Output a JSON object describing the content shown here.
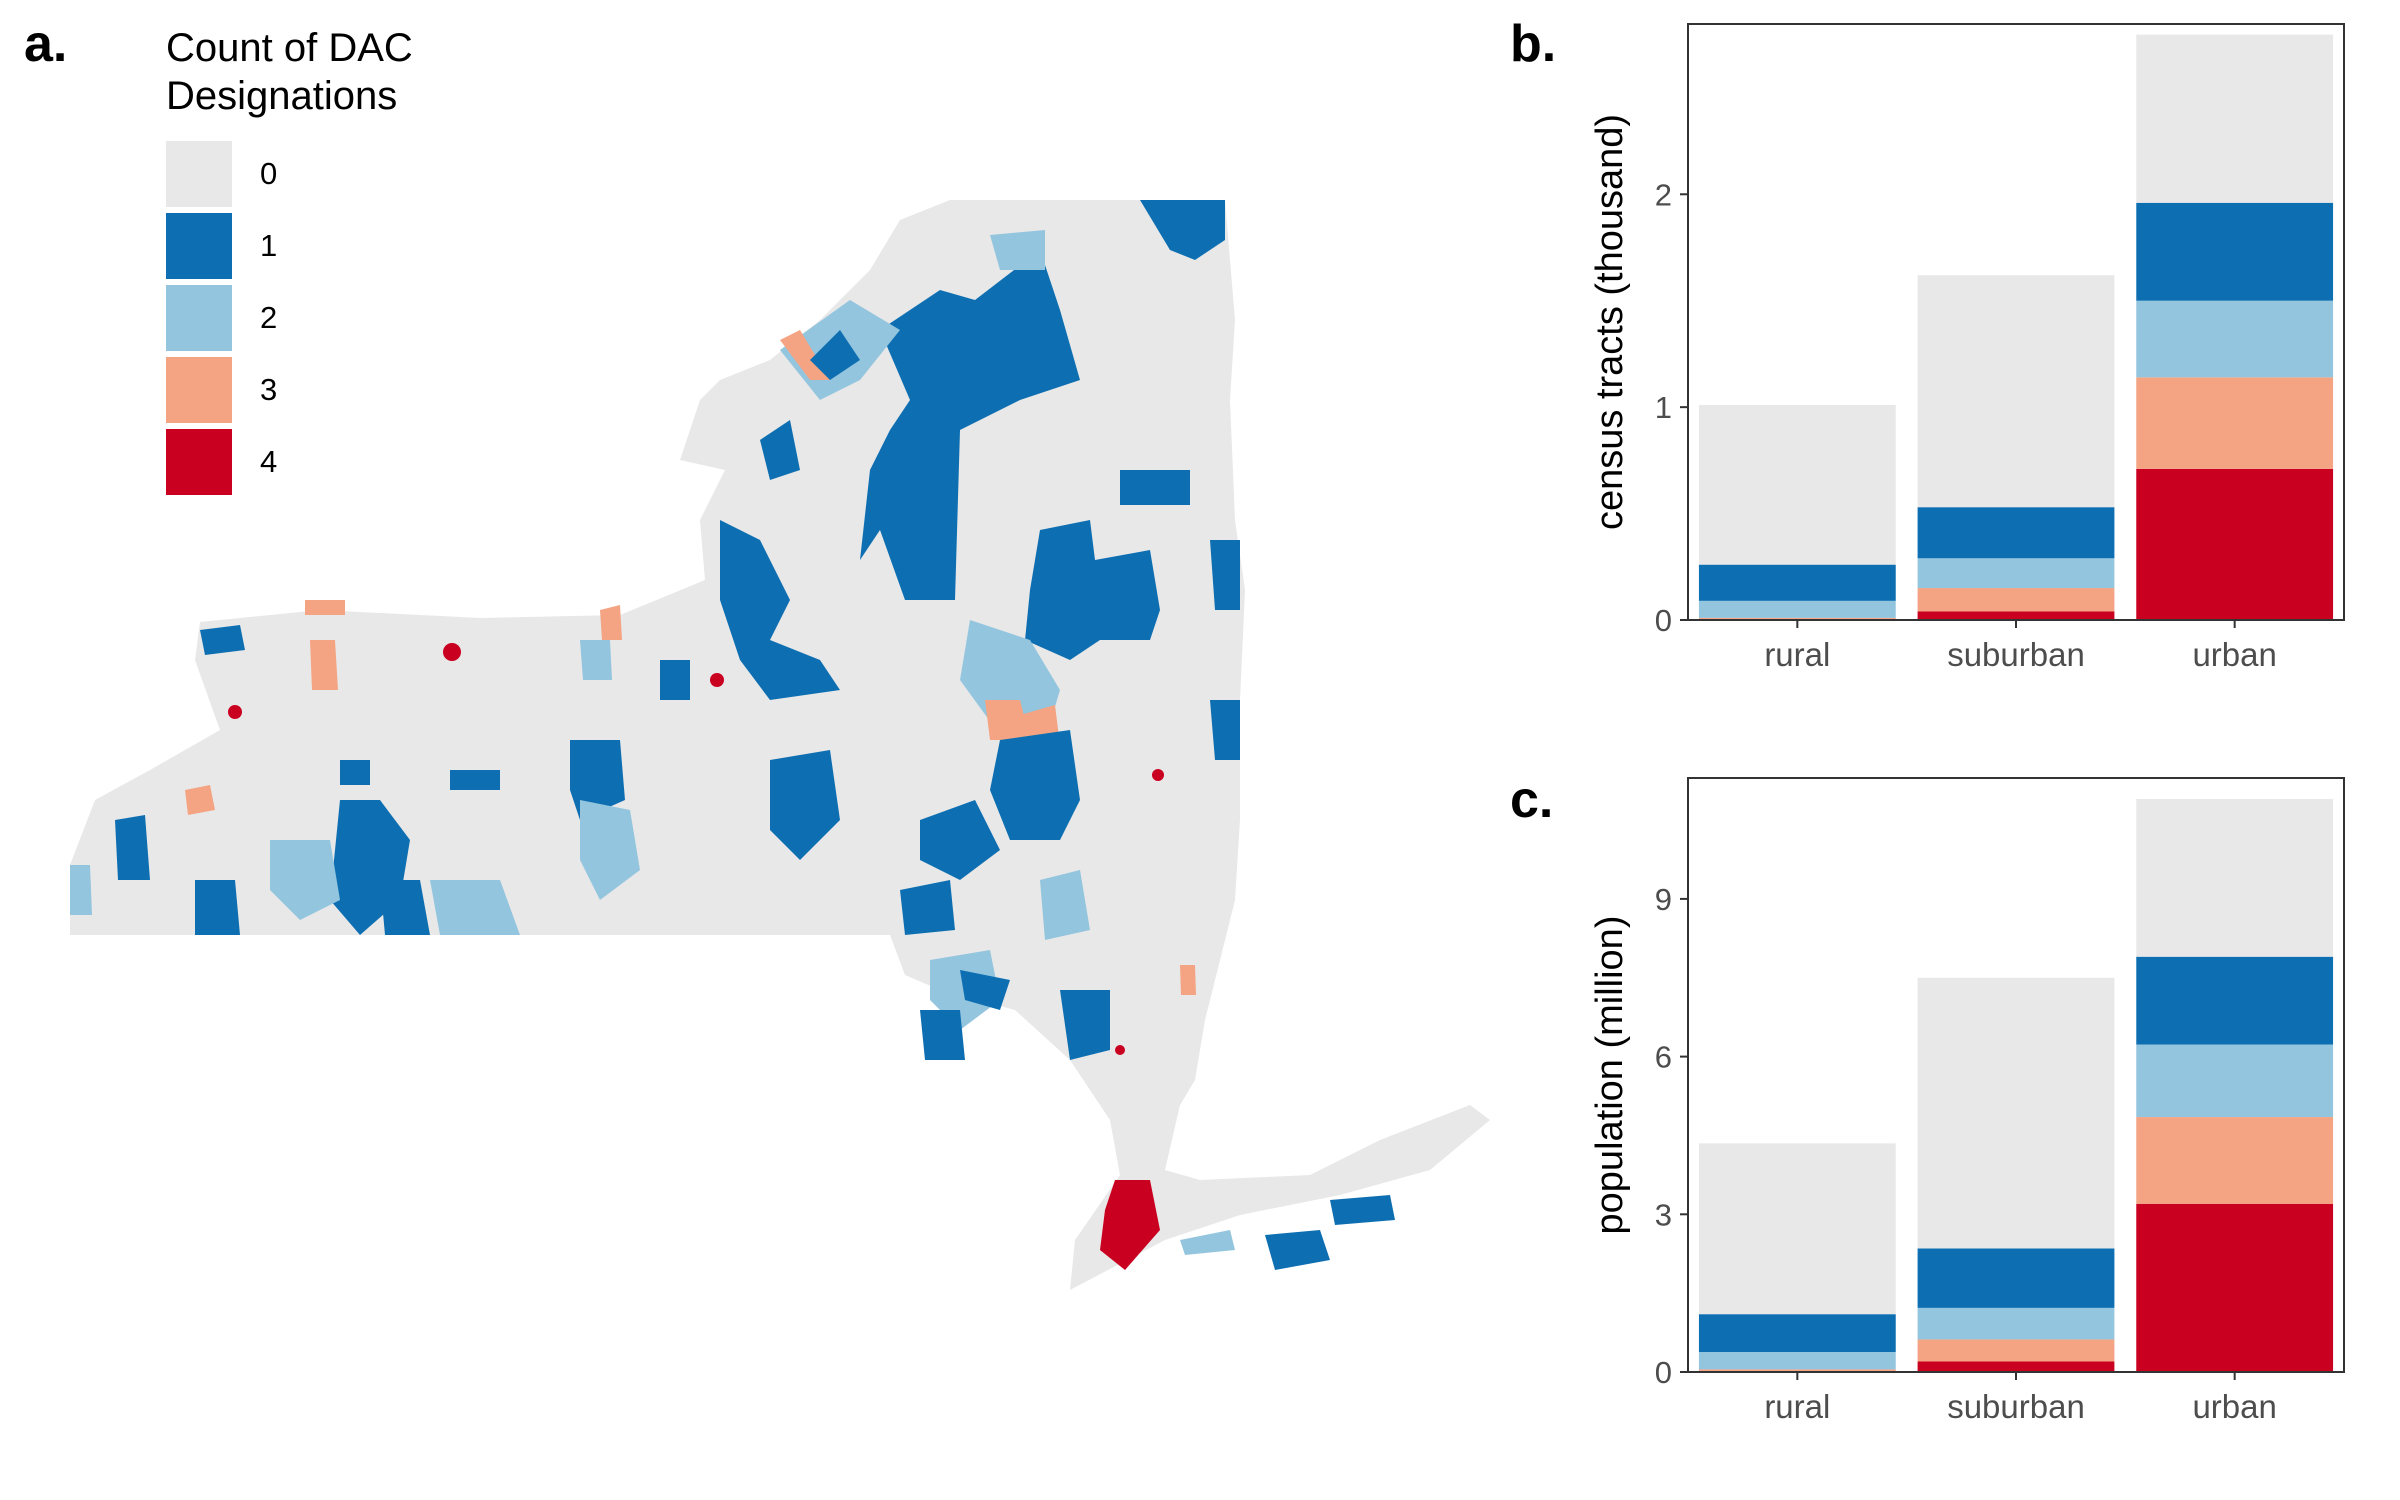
{
  "panels": {
    "a_label": "a.",
    "b_label": "b.",
    "c_label": "c."
  },
  "legend": {
    "title_line1": "Count of DAC",
    "title_line2": "Designations",
    "items": [
      {
        "label": "0",
        "color": "#e8e8e8"
      },
      {
        "label": "1",
        "color": "#0d6fb2"
      },
      {
        "label": "2",
        "color": "#93c5de"
      },
      {
        "label": "3",
        "color": "#f4a482"
      },
      {
        "label": "4",
        "color": "#ca0020"
      }
    ]
  },
  "chart_data": [
    {
      "type": "bar",
      "stacked": true,
      "categories": [
        "rural",
        "suburban",
        "urban"
      ],
      "ylabel": "census tracts (thousand)",
      "ylim": [
        0,
        2.8
      ],
      "yticks": [
        0,
        1,
        2
      ],
      "series": [
        {
          "name": "4",
          "color": "#ca0020",
          "values": [
            0.0,
            0.04,
            0.71
          ]
        },
        {
          "name": "3",
          "color": "#f4a482",
          "values": [
            0.01,
            0.11,
            0.43
          ]
        },
        {
          "name": "2",
          "color": "#93c5de",
          "values": [
            0.08,
            0.14,
            0.36
          ]
        },
        {
          "name": "1",
          "color": "#0d6fb2",
          "values": [
            0.17,
            0.24,
            0.46
          ]
        },
        {
          "name": "0",
          "color": "#e8e8e8",
          "values": [
            0.75,
            1.09,
            0.79
          ]
        }
      ]
    },
    {
      "type": "bar",
      "stacked": true,
      "categories": [
        "rural",
        "suburban",
        "urban"
      ],
      "ylabel": "population (million)",
      "ylim": [
        0,
        11.3
      ],
      "yticks": [
        0,
        3,
        6,
        9
      ],
      "series": [
        {
          "name": "4",
          "color": "#ca0020",
          "values": [
            0.0,
            0.2,
            3.2
          ]
        },
        {
          "name": "3",
          "color": "#f4a482",
          "values": [
            0.05,
            0.42,
            1.65
          ]
        },
        {
          "name": "2",
          "color": "#93c5de",
          "values": [
            0.33,
            0.6,
            1.38
          ]
        },
        {
          "name": "1",
          "color": "#0d6fb2",
          "values": [
            0.72,
            1.13,
            1.67
          ]
        },
        {
          "name": "0",
          "color": "#e8e8e8",
          "values": [
            3.25,
            5.15,
            3.0
          ]
        }
      ]
    }
  ]
}
